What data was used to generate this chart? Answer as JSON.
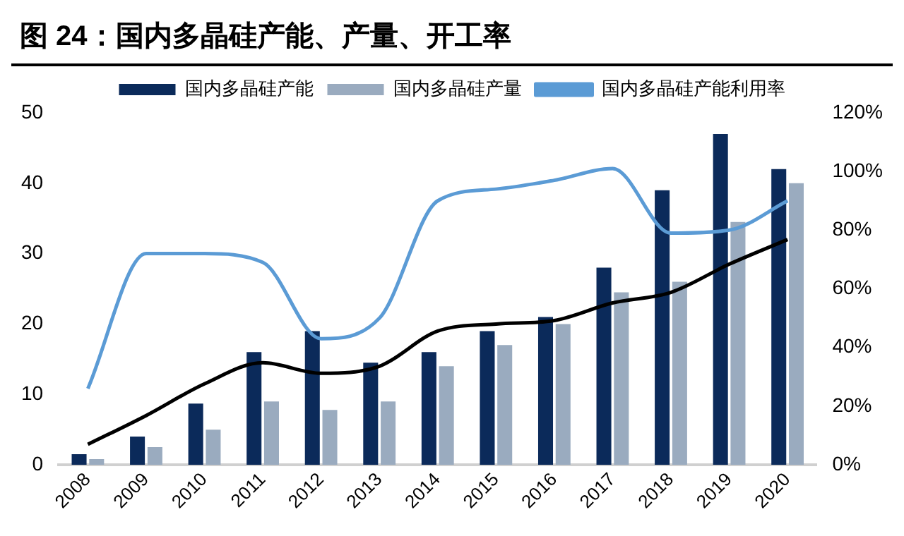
{
  "chart_data": {
    "type": "bar",
    "title": "图 24：国内多晶硅产能、产量、开工率",
    "categories": [
      "2008",
      "2009",
      "2010",
      "2011",
      "2012",
      "2013",
      "2014",
      "2015",
      "2016",
      "2017",
      "2018",
      "2019",
      "2020"
    ],
    "series": [
      {
        "name": "国内多晶硅产能",
        "color": "#0b2a5a",
        "values": [
          1.5,
          4,
          8.7,
          16,
          19,
          14.5,
          16,
          19,
          21,
          28,
          39,
          47,
          42
        ]
      },
      {
        "name": "国内多晶硅产量",
        "color": "#9aabbf",
        "values": [
          0.8,
          2.5,
          5,
          9,
          7.8,
          9,
          14,
          17,
          20,
          24.5,
          26,
          34.5,
          40
        ]
      },
      {
        "name": "国内多晶硅产能利用率",
        "type": "line",
        "axis": "y2",
        "color": "#5b9bd5",
        "values": [
          26,
          72,
          72,
          69,
          43,
          50,
          90,
          94,
          97,
          101,
          79,
          80,
          90
        ]
      },
      {
        "type": "line",
        "color": "#000000",
        "values": [
          2.9,
          7,
          11.5,
          14.5,
          13,
          14,
          19,
          20,
          20.5,
          23,
          24.5,
          28.5,
          32
        ]
      }
    ],
    "ylim": [
      0,
      50
    ],
    "yticks": [
      0,
      10,
      20,
      30,
      40,
      50
    ],
    "y2lim": [
      0,
      120
    ],
    "y2ticks": [
      {
        "value": 0,
        "label": "0%"
      },
      {
        "value": 20,
        "label": "20%"
      },
      {
        "value": 40,
        "label": "40%"
      },
      {
        "value": 60,
        "label": "60%"
      },
      {
        "value": 80,
        "label": "80%"
      },
      {
        "value": 100,
        "label": "100%"
      },
      {
        "value": 120,
        "label": "120%"
      }
    ],
    "grid": false,
    "legend": "top",
    "marker": "none"
  }
}
